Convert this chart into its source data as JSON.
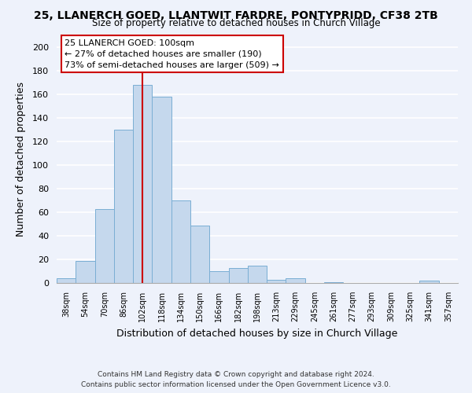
{
  "title": "25, LLANERCH GOED, LLANTWIT FARDRE, PONTYPRIDD, CF38 2TB",
  "subtitle": "Size of property relative to detached houses in Church Village",
  "xlabel": "Distribution of detached houses by size in Church Village",
  "ylabel": "Number of detached properties",
  "bar_color": "#c5d8ed",
  "bar_edge_color": "#7aaed4",
  "background_color": "#eef2fb",
  "grid_color": "#ffffff",
  "categories": [
    "38sqm",
    "54sqm",
    "70sqm",
    "86sqm",
    "102sqm",
    "118sqm",
    "134sqm",
    "150sqm",
    "166sqm",
    "182sqm",
    "198sqm",
    "213sqm",
    "229sqm",
    "245sqm",
    "261sqm",
    "277sqm",
    "293sqm",
    "309sqm",
    "325sqm",
    "341sqm",
    "357sqm"
  ],
  "values": [
    4,
    19,
    63,
    130,
    168,
    158,
    70,
    49,
    10,
    13,
    15,
    3,
    4,
    0,
    1,
    0,
    0,
    0,
    0,
    2,
    0
  ],
  "ylim": [
    0,
    210
  ],
  "yticks": [
    0,
    20,
    40,
    60,
    80,
    100,
    120,
    140,
    160,
    180,
    200
  ],
  "vline_x_index": 4,
  "vline_color": "#cc0000",
  "annotation_line1": "25 LLANERCH GOED: 100sqm",
  "annotation_line2": "← 27% of detached houses are smaller (190)",
  "annotation_line3": "73% of semi-detached houses are larger (509) →",
  "footer_line1": "Contains HM Land Registry data © Crown copyright and database right 2024.",
  "footer_line2": "Contains public sector information licensed under the Open Government Licence v3.0."
}
